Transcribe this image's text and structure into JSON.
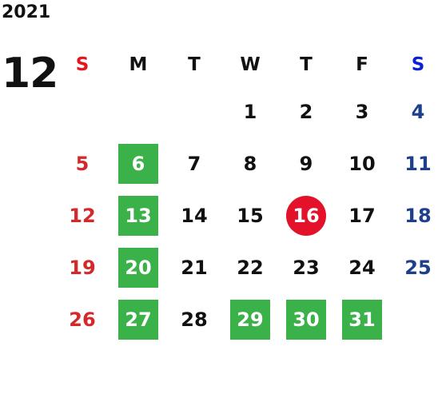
{
  "calendar": {
    "year": "2021",
    "month": "12",
    "weekdays": [
      "S",
      "M",
      "T",
      "W",
      "T",
      "F",
      "S"
    ],
    "weeks": [
      [
        "",
        "",
        "",
        "1",
        "2",
        "3",
        "4"
      ],
      [
        "5",
        "6",
        "7",
        "8",
        "9",
        "10",
        "11"
      ],
      [
        "12",
        "13",
        "14",
        "15",
        "16",
        "17",
        "18"
      ],
      [
        "19",
        "20",
        "21",
        "22",
        "23",
        "24",
        "25"
      ],
      [
        "26",
        "27",
        "28",
        "29",
        "30",
        "31",
        ""
      ]
    ],
    "highlighted_days": [
      "6",
      "13",
      "20",
      "27",
      "29",
      "30",
      "31"
    ],
    "today": "16"
  },
  "colors": {
    "sunday": "#d5282b",
    "saturday": "#1d3f8c",
    "highlight_green": "#3bb14a",
    "today_red": "#e3112a"
  }
}
